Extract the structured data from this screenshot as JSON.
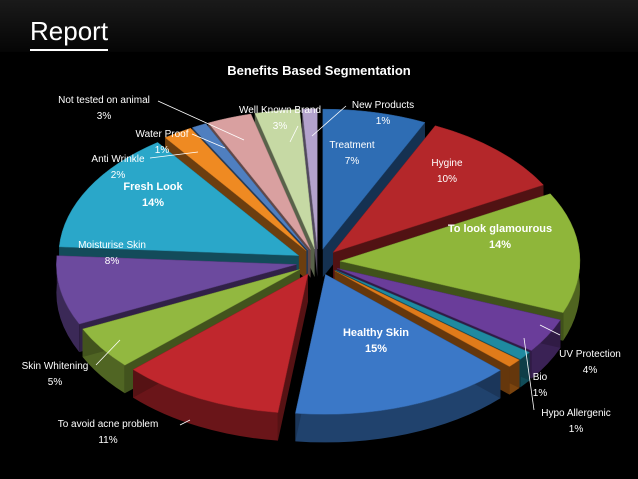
{
  "page_title": "Report",
  "chart_data": {
    "type": "pie",
    "title": "Benefits Based Segmentation",
    "slices": [
      {
        "name": "Treatment",
        "value": 7,
        "pct": "7%",
        "color": "#2e6db4"
      },
      {
        "name": "Hygine",
        "value": 10,
        "pct": "10%",
        "color": "#b4272a"
      },
      {
        "name": "To look glamourous",
        "value": 14,
        "pct": "14%",
        "color": "#8fb63a"
      },
      {
        "name": "UV Protection",
        "value": 4,
        "pct": "4%",
        "color": "#6a3d9a"
      },
      {
        "name": "Hypo Allergenic",
        "value": 1,
        "pct": "1%",
        "color": "#1f8aa0"
      },
      {
        "name": "Bio",
        "value": 1,
        "pct": "1%",
        "color": "#e07b1a"
      },
      {
        "name": "Healthy Skin",
        "value": 15,
        "pct": "15%",
        "color": "#3b78c7"
      },
      {
        "name": "To avoid acne problem",
        "value": 11,
        "pct": "11%",
        "color": "#c0272d"
      },
      {
        "name": "Skin Whitening",
        "value": 5,
        "pct": "5%",
        "color": "#92b840"
      },
      {
        "name": "Moisturise Skin",
        "value": 8,
        "pct": "8%",
        "color": "#6c4a9e"
      },
      {
        "name": "Fresh Look",
        "value": 14,
        "pct": "14%",
        "color": "#2aa7c9"
      },
      {
        "name": "Anti Wrinkle",
        "value": 2,
        "pct": "2%",
        "color": "#ef8a22"
      },
      {
        "name": "Water Proof",
        "value": 1,
        "pct": "1%",
        "color": "#4f7fc0"
      },
      {
        "name": "Not tested on animal",
        "value": 3,
        "pct": "3%",
        "color": "#d9a0a0"
      },
      {
        "name": "Well Known Brand",
        "value": 3,
        "pct": "3%",
        "color": "#c6d9a4"
      },
      {
        "name": "New Products",
        "value": 1,
        "pct": "1%",
        "color": "#b3a2cc"
      }
    ]
  }
}
